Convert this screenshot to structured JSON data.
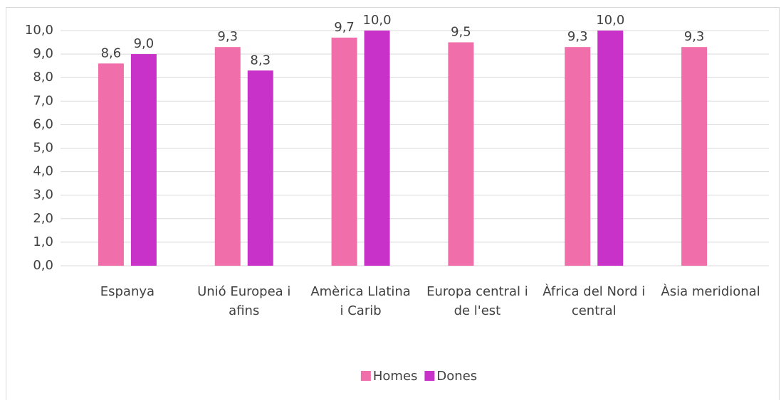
{
  "chart_data": {
    "type": "bar",
    "categories": [
      "Espanya",
      "Unió Europea i afins",
      "Amèrica Llatina i Carib",
      "Europa central i de l'est",
      "Àfrica del Nord i central",
      "Àsia meridional"
    ],
    "series": [
      {
        "name": "Homes",
        "color": "#f06ea9",
        "values": [
          8.6,
          9.3,
          9.7,
          9.5,
          9.3,
          9.3
        ],
        "value_labels": [
          "8,6",
          "9,3",
          "9,7",
          "9,5",
          "9,3",
          "9,3"
        ]
      },
      {
        "name": "Dones",
        "color": "#c832c8",
        "values": [
          9.0,
          8.3,
          10.0,
          null,
          10.0,
          null
        ],
        "value_labels": [
          "9,0",
          "8,3",
          "10,0",
          null,
          "10,0",
          null
        ]
      }
    ],
    "ylim": [
      0,
      10
    ],
    "yticks": [
      {
        "value": 0,
        "label": "0,0"
      },
      {
        "value": 1,
        "label": "1,0"
      },
      {
        "value": 2,
        "label": "2,0"
      },
      {
        "value": 3,
        "label": "3,0"
      },
      {
        "value": 4,
        "label": "4,0"
      },
      {
        "value": 5,
        "label": "5,0"
      },
      {
        "value": 6,
        "label": "6,0"
      },
      {
        "value": 7,
        "label": "7,0"
      },
      {
        "value": 8,
        "label": "8,0"
      },
      {
        "value": 9,
        "label": "9,0"
      },
      {
        "value": 10,
        "label": "10,0"
      }
    ],
    "grid": true,
    "legend": "bottom"
  }
}
